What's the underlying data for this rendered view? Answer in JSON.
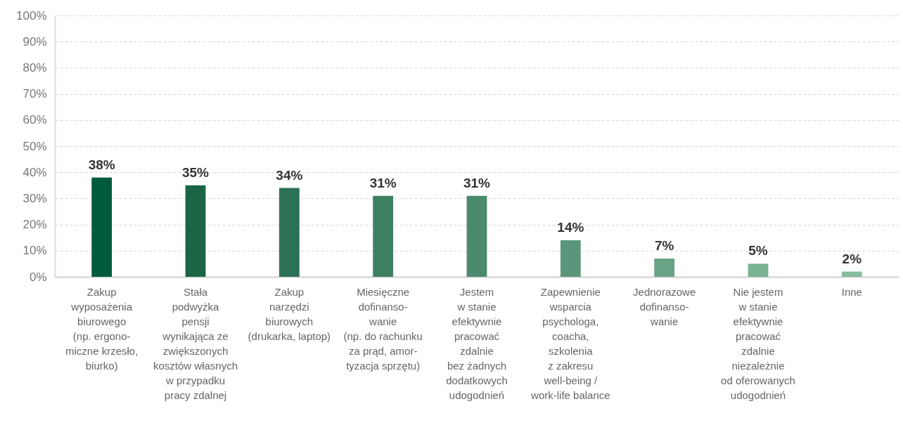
{
  "chart_data": {
    "type": "bar",
    "categories": [
      "Zakup\nwyposażenia\nbiurowego\n(np. ergono-\nmiczne krzesło,\nbiurko)",
      "Stała\npodwyżka\npensji\nwynikająca ze\nzwiększonych\nkosztów własnych\nw przypadku\npracy zdalnej",
      "Zakup\nnarzędzi\nbiurowych\n(drukarka, laptop)",
      "Miesięczne\ndofinanso-\nwanie\n(np. do rachunku\nza prąd, amor-\ntyzacja sprzętu)",
      "Jestem\nw stanie\nefektywnie\npracować\nzdalnie\nbez żadnych\ndodatkowych\nudogodnień",
      "Zapewnienie\nwsparcia\npsychologa,\ncoacha,\nszkolenia\nz zakresu\nwell-being /\nwork-life balance",
      "Jednorazowe\ndofinanso-\nwanie",
      "Nie jestem\nw stanie\nefektywnie\npracować\nzdalnie\nniezależnie\nod oferowanych\nudogodnień",
      "Inne"
    ],
    "values": [
      38,
      35,
      34,
      31,
      31,
      14,
      7,
      5,
      2
    ],
    "colors": [
      "#005a3c",
      "#1b6446",
      "#2b7155",
      "#3d8062",
      "#4a8a6d",
      "#5a967a",
      "#69a386",
      "#79b393",
      "#86bd9c"
    ],
    "value_labels": [
      "38%",
      "35%",
      "34%",
      "31%",
      "31%",
      "14%",
      "7%",
      "5%",
      "2%"
    ],
    "ylim": [
      0,
      100
    ],
    "yticks": [
      {
        "value": 0,
        "label": "0%"
      },
      {
        "value": 10,
        "label": "10%"
      },
      {
        "value": 20,
        "label": "20%"
      },
      {
        "value": 30,
        "label": "30%"
      },
      {
        "value": 40,
        "label": "40%"
      },
      {
        "value": 50,
        "label": "50%"
      },
      {
        "value": 60,
        "label": "60%"
      },
      {
        "value": 70,
        "label": "70%"
      },
      {
        "value": 80,
        "label": "80%"
      },
      {
        "value": 90,
        "label": "90%"
      },
      {
        "value": 100,
        "label": "100%"
      }
    ],
    "grid": "y"
  }
}
